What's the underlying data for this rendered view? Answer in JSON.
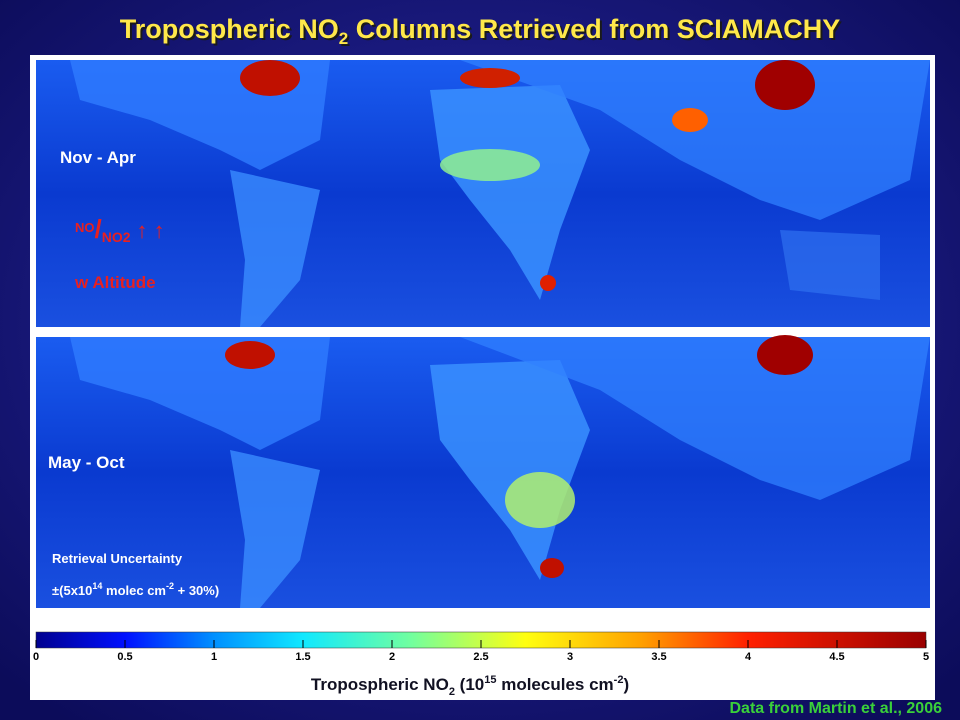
{
  "title": {
    "parts": [
      "Tropospheric NO",
      "2",
      " Columns Retrieved from SCIAMACHY"
    ]
  },
  "panels": [
    {
      "season": "Nov - Apr",
      "annotation": {
        "parts": [
          "NO",
          "/",
          "NO2",
          "↑ ↑"
        ],
        "line2": "w Altitude"
      }
    },
    {
      "season": "May - Oct",
      "annotation": {
        "line1": "Retrieval Uncertainty",
        "parts": [
          "±(5x10",
          "14",
          " molec cm",
          "-2",
          " + 30%)"
        ]
      }
    }
  ],
  "colorbar": {
    "lim": [
      0,
      5
    ],
    "ticks": [
      0,
      0.5,
      1,
      1.5,
      2,
      2.5,
      3,
      3.5,
      4,
      4.5,
      5
    ],
    "label": {
      "parts": [
        "Tropospheric NO",
        "2",
        " (10",
        "15",
        " molecules cm",
        "-2",
        ")"
      ]
    }
  },
  "credit": "Data from Martin et al., 2006"
}
